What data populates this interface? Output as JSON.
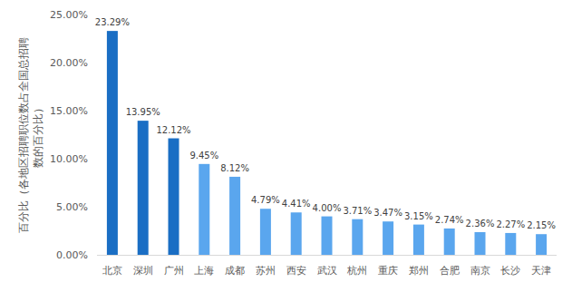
{
  "chart_data": {
    "type": "bar",
    "y_label": "百分比（各地区招聘职位数占全国总招聘数的百分比）",
    "categories": [
      "北京",
      "深圳",
      "广州",
      "上海",
      "成都",
      "苏州",
      "西安",
      "武汉",
      "杭州",
      "重庆",
      "郑州",
      "合肥",
      "南京",
      "长沙",
      "天津"
    ],
    "values": [
      23.29,
      13.95,
      12.12,
      9.45,
      8.12,
      4.79,
      4.41,
      4.0,
      3.71,
      3.47,
      3.15,
      2.74,
      2.36,
      2.27,
      2.15
    ],
    "value_labels": [
      "23.29%",
      "13.95%",
      "12.12%",
      "9.45%",
      "8.12%",
      "4.79%",
      "4.41%",
      "4.00%",
      "3.71%",
      "3.47%",
      "3.15%",
      "2.74%",
      "2.36%",
      "2.27%",
      "2.15%"
    ],
    "colors": [
      "#1a6ec4",
      "#1a6ec4",
      "#1a6ec4",
      "#5aa6ee",
      "#5aa6ee",
      "#5aa6ee",
      "#5aa6ee",
      "#5aa6ee",
      "#5aa6ee",
      "#5aa6ee",
      "#5aa6ee",
      "#5aa6ee",
      "#5aa6ee",
      "#5aa6ee",
      "#5aa6ee"
    ],
    "ylim": [
      0,
      25
    ],
    "yticks": [
      {
        "value": 0,
        "label": "0.00%"
      },
      {
        "value": 5,
        "label": "5.00%"
      },
      {
        "value": 10,
        "label": "10.00%"
      },
      {
        "value": 15,
        "label": "15.00%"
      },
      {
        "value": 20,
        "label": "20.00%"
      },
      {
        "value": 25,
        "label": "25.00%"
      }
    ],
    "grid": false,
    "data_labels": true
  }
}
